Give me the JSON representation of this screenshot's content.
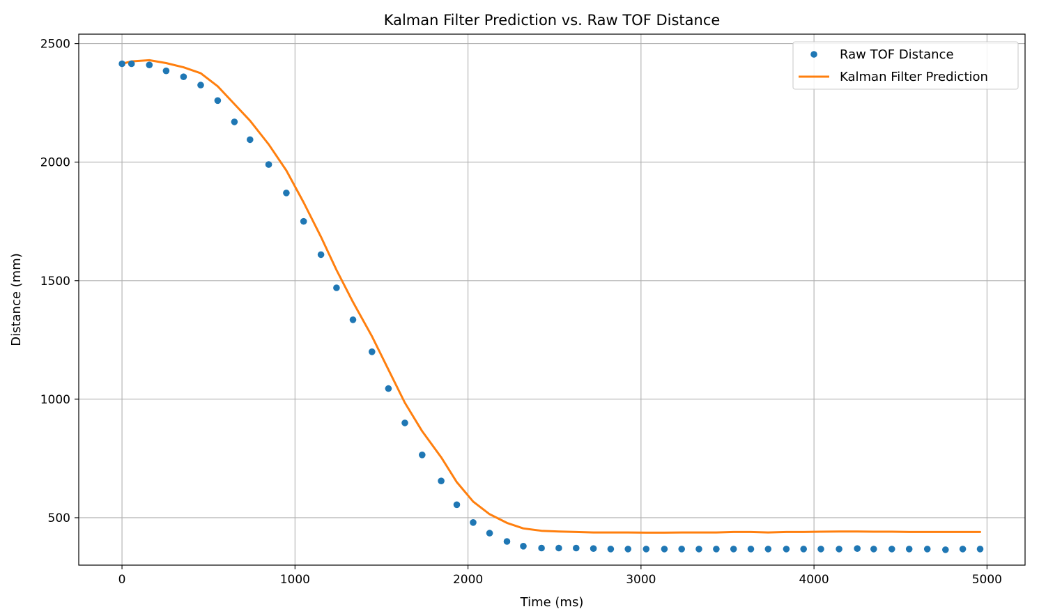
{
  "chart_data": {
    "type": "line",
    "title": "Kalman Filter Prediction vs. Raw TOF Distance",
    "xlabel": "Time (ms)",
    "ylabel": "Distance (mm)",
    "xlim": [
      -250,
      5220
    ],
    "ylim": [
      300,
      2540
    ],
    "xticks": [
      0,
      1000,
      2000,
      3000,
      4000,
      5000
    ],
    "yticks": [
      500,
      1000,
      1500,
      2000,
      2500
    ],
    "grid": true,
    "legend_position": "top-right",
    "colors": {
      "raw": "#1f77b4",
      "kalman": "#ff7f0e"
    },
    "series": [
      {
        "name": "Raw TOF Distance",
        "style": "scatter",
        "x": [
          0,
          55,
          158,
          255,
          356,
          455,
          553,
          650,
          740,
          848,
          950,
          1050,
          1150,
          1240,
          1335,
          1445,
          1540,
          1635,
          1735,
          1845,
          1935,
          2030,
          2125,
          2225,
          2320,
          2425,
          2525,
          2625,
          2725,
          2825,
          2925,
          3030,
          3135,
          3235,
          3335,
          3435,
          3535,
          3635,
          3735,
          3840,
          3940,
          4040,
          4145,
          4250,
          4345,
          4450,
          4550,
          4655,
          4760,
          4860,
          4960
        ],
        "y": [
          2415,
          2415,
          2410,
          2385,
          2360,
          2325,
          2260,
          2170,
          2095,
          1990,
          1870,
          1750,
          1610,
          1470,
          1335,
          1200,
          1045,
          900,
          765,
          655,
          555,
          480,
          435,
          400,
          380,
          372,
          372,
          372,
          370,
          368,
          368,
          368,
          368,
          368,
          368,
          368,
          368,
          368,
          368,
          368,
          368,
          368,
          368,
          370,
          368,
          368,
          368,
          368,
          365,
          368,
          368
        ]
      },
      {
        "name": "Kalman Filter Prediction",
        "style": "line",
        "x": [
          0,
          55,
          158,
          255,
          356,
          455,
          553,
          650,
          740,
          848,
          950,
          1050,
          1150,
          1240,
          1335,
          1445,
          1540,
          1635,
          1735,
          1845,
          1935,
          2030,
          2125,
          2225,
          2320,
          2425,
          2525,
          2625,
          2725,
          2825,
          2925,
          3030,
          3135,
          3235,
          3335,
          3435,
          3535,
          3635,
          3735,
          3840,
          3940,
          4040,
          4145,
          4250,
          4345,
          4450,
          4550,
          4655,
          4760,
          4860,
          4960
        ],
        "y": [
          2415,
          2425,
          2430,
          2418,
          2400,
          2375,
          2320,
          2245,
          2175,
          2075,
          1965,
          1830,
          1685,
          1545,
          1410,
          1265,
          1125,
          985,
          865,
          755,
          650,
          568,
          515,
          478,
          455,
          445,
          442,
          440,
          438,
          438,
          438,
          437,
          437,
          438,
          438,
          438,
          440,
          440,
          438,
          440,
          440,
          441,
          442,
          442,
          441,
          441,
          440,
          440,
          440,
          440,
          440
        ]
      }
    ]
  }
}
